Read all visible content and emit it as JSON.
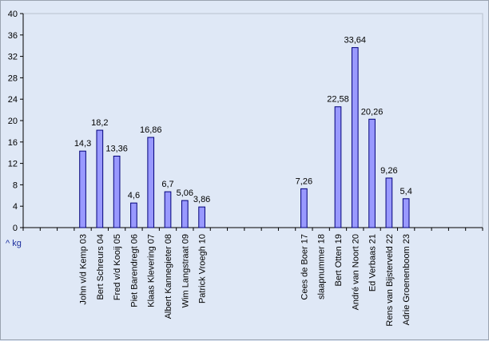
{
  "chart_data": {
    "type": "bar",
    "title": "",
    "xlabel": "",
    "ylabel": "",
    "unit_label": "^ kg",
    "ylim": [
      0,
      40
    ],
    "ytick_step": 4,
    "grid": false,
    "bar_color": "#9999ff",
    "bar_edge": "#00007a",
    "categories": [
      "",
      "",
      "",
      "John v/d Kemp 03",
      "Bert Schreurs 04",
      "Fred v/d Kooij 05",
      "Piet Barendregt 06",
      "Klaas Klevering 07",
      "Albert Kannegieter 08",
      "Wim Langstraat 09",
      "Patrick Vroegh 10",
      "",
      "",
      "",
      "",
      "",
      "Cees de Boer 17",
      "slaapnummer 18",
      "Bert Otten 19",
      "André van Noort 20",
      "Ed Verbaas 21",
      "Rens van Bijsterveld 22",
      "Adrie Groenenboom 23",
      "",
      "",
      "",
      ""
    ],
    "values": [
      null,
      null,
      null,
      14.3,
      18.2,
      13.36,
      4.6,
      16.86,
      6.7,
      5.06,
      3.86,
      null,
      null,
      null,
      null,
      null,
      7.26,
      null,
      22.58,
      33.64,
      20.26,
      9.26,
      5.4,
      null,
      null,
      null,
      null
    ],
    "data_labels": [
      "",
      "",
      "",
      "14,3",
      "18,2",
      "13,36",
      "4,6",
      "16,86",
      "6,7",
      "5,06",
      "3,86",
      "",
      "",
      "",
      "",
      "",
      "7,26",
      "",
      "22,58",
      "33,64",
      "20,26",
      "9,26",
      "5,4",
      "",
      "",
      "",
      ""
    ]
  }
}
